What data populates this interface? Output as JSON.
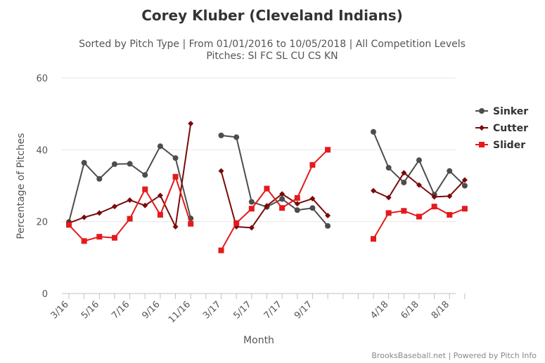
{
  "chart_data": {
    "type": "line",
    "title": "Corey Kluber (Cleveland Indians)",
    "subtitle_line1": "Sorted by Pitch Type | From 01/01/2016 to 10/05/2018 | All Competition Levels",
    "subtitle_line2": "Pitches: SI FC SL CU CS KN",
    "xlabel": "Month",
    "ylabel": "Percentage of Pitches",
    "ylim": [
      0,
      60
    ],
    "yticks": [
      0,
      20,
      40,
      60
    ],
    "grid": true,
    "legend_position": "right",
    "categories": [
      "3/16",
      "4/16",
      "5/16",
      "6/16",
      "7/16",
      "8/16",
      "9/16",
      "10/16",
      "11/16",
      "12/16",
      "3/17",
      "4/17",
      "5/17",
      "6/17",
      "7/17",
      "8/17",
      "9/17",
      "10/17",
      "11/17",
      "12/17",
      "3/18",
      "4/18",
      "5/18",
      "6/18",
      "7/18",
      "8/18",
      "9/18"
    ],
    "xtick_labels": [
      "3/16",
      "",
      "5/16",
      "",
      "7/16",
      "",
      "9/16",
      "",
      "11/16",
      "",
      "3/17",
      "",
      "5/17",
      "",
      "7/17",
      "",
      "9/17",
      "",
      "",
      "",
      "",
      "4/18",
      "",
      "6/18",
      "",
      "8/18",
      ""
    ],
    "series": [
      {
        "name": "Sinker",
        "color": "#4d4d4d",
        "marker": "circle",
        "values": [
          19.9,
          36.4,
          31.9,
          36.0,
          36.1,
          33.0,
          41.0,
          37.7,
          20.9,
          null,
          44.0,
          43.5,
          25.5,
          24.1,
          26.3,
          23.2,
          23.8,
          18.8,
          null,
          null,
          45.0,
          35.0,
          30.9,
          37.1,
          27.5,
          34.1,
          30.0
        ]
      },
      {
        "name": "Cutter",
        "color": "#7a0a0a",
        "marker": "diamond",
        "values": [
          19.6,
          21.2,
          22.4,
          24.2,
          26.0,
          24.5,
          27.3,
          18.6,
          47.3,
          null,
          34.1,
          18.6,
          18.3,
          24.4,
          27.7,
          25.0,
          26.4,
          21.7,
          null,
          null,
          28.6,
          26.7,
          33.6,
          30.2,
          26.9,
          27.1,
          31.6
        ]
      },
      {
        "name": "Slider",
        "color": "#e41a1c",
        "marker": "square",
        "values": [
          19.1,
          14.6,
          15.8,
          15.5,
          20.8,
          29.0,
          21.9,
          32.5,
          19.4,
          null,
          12.0,
          19.6,
          23.6,
          29.2,
          23.8,
          26.6,
          35.8,
          40.0,
          null,
          null,
          15.2,
          22.4,
          23.0,
          21.4,
          24.2,
          21.9,
          23.6
        ]
      }
    ]
  },
  "credits": "BrooksBaseball.net | Powered by Pitch Info"
}
